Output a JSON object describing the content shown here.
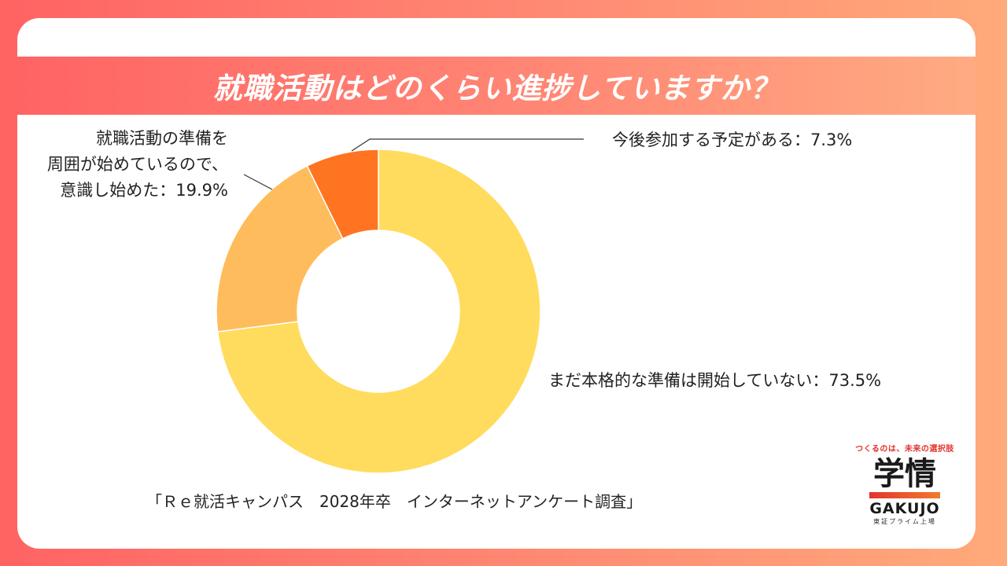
{
  "title": "就職活動はどのくらい進捗していますか？",
  "source": "「Ｒｅ就活キャンパス　2028年卒　インターネットアンケート調査」",
  "chart_data": {
    "type": "pie",
    "donut": true,
    "categories": [
      "まだ本格的な準備は開始していない",
      "就職活動の準備を周囲が始めているので、意識し始めた",
      "今後参加する予定がある"
    ],
    "values": [
      73.5,
      19.9,
      7.3
    ],
    "colors": [
      "#ffdc5e",
      "#ffbc5c",
      "#ff7420"
    ],
    "labels": [
      "まだ本格的な準備は開始していない：73.5%",
      [
        "就職活動の準備を",
        "周囲が始めているので、",
        "意識し始めた：19.9%"
      ],
      "今後参加する予定がある：7.3%"
    ]
  },
  "logo": {
    "tagline": "つくるのは、未来の選択肢",
    "name": "学情",
    "name_en": "GAKUJO",
    "sub": "東証プライム上場"
  }
}
